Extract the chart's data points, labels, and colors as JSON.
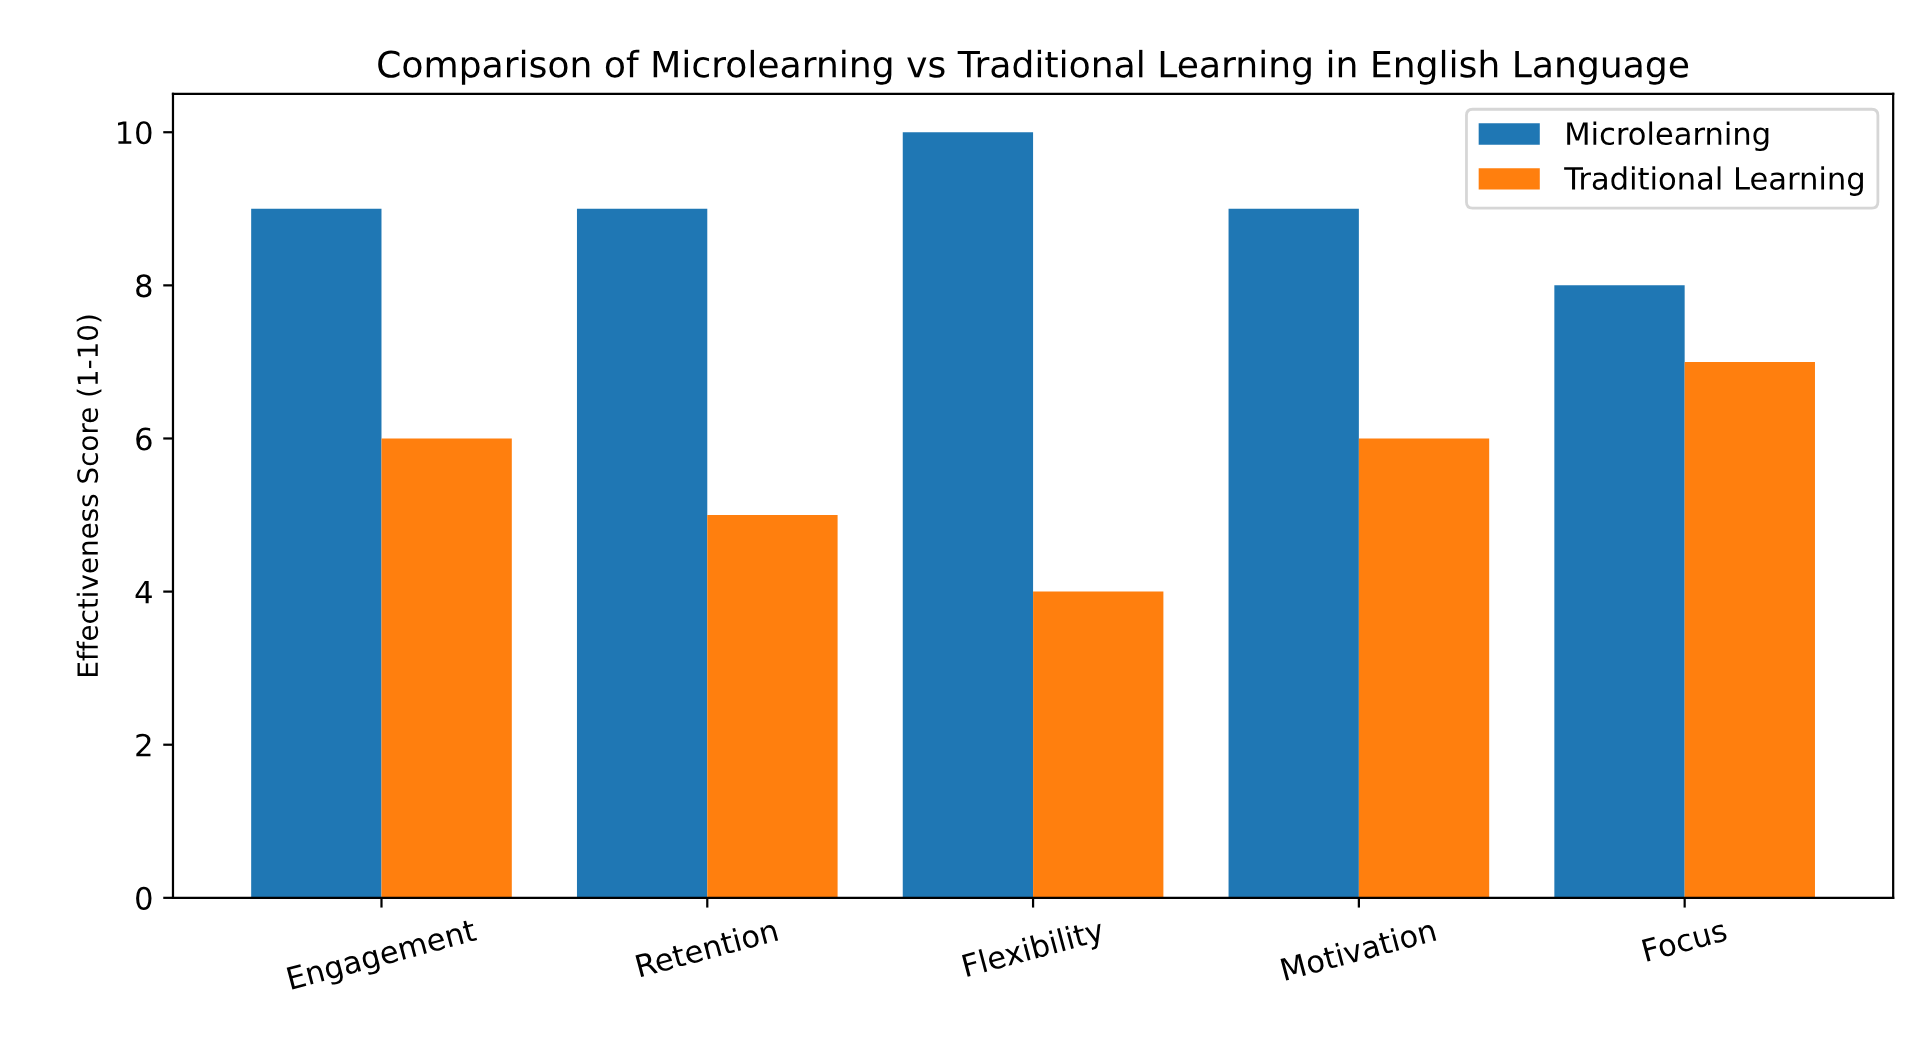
{
  "chart_data": {
    "type": "bar",
    "title": "Comparison of Microlearning vs Traditional Learning in English Language",
    "ylabel": "Effectiveness Score (1-10)",
    "categories": [
      "Engagement",
      "Retention",
      "Flexibility",
      "Motivation",
      "Focus"
    ],
    "series": [
      {
        "name": "Microlearning",
        "color": "#1f77b4",
        "values": [
          9,
          9,
          10,
          9,
          8
        ]
      },
      {
        "name": "Traditional Learning",
        "color": "#ff7f0e",
        "values": [
          6,
          5,
          4,
          6,
          7
        ]
      }
    ],
    "ylim": [
      0,
      10.5
    ],
    "yticks": [
      0,
      2,
      4,
      6,
      8,
      10
    ],
    "legend": "top right",
    "grid": false
  }
}
